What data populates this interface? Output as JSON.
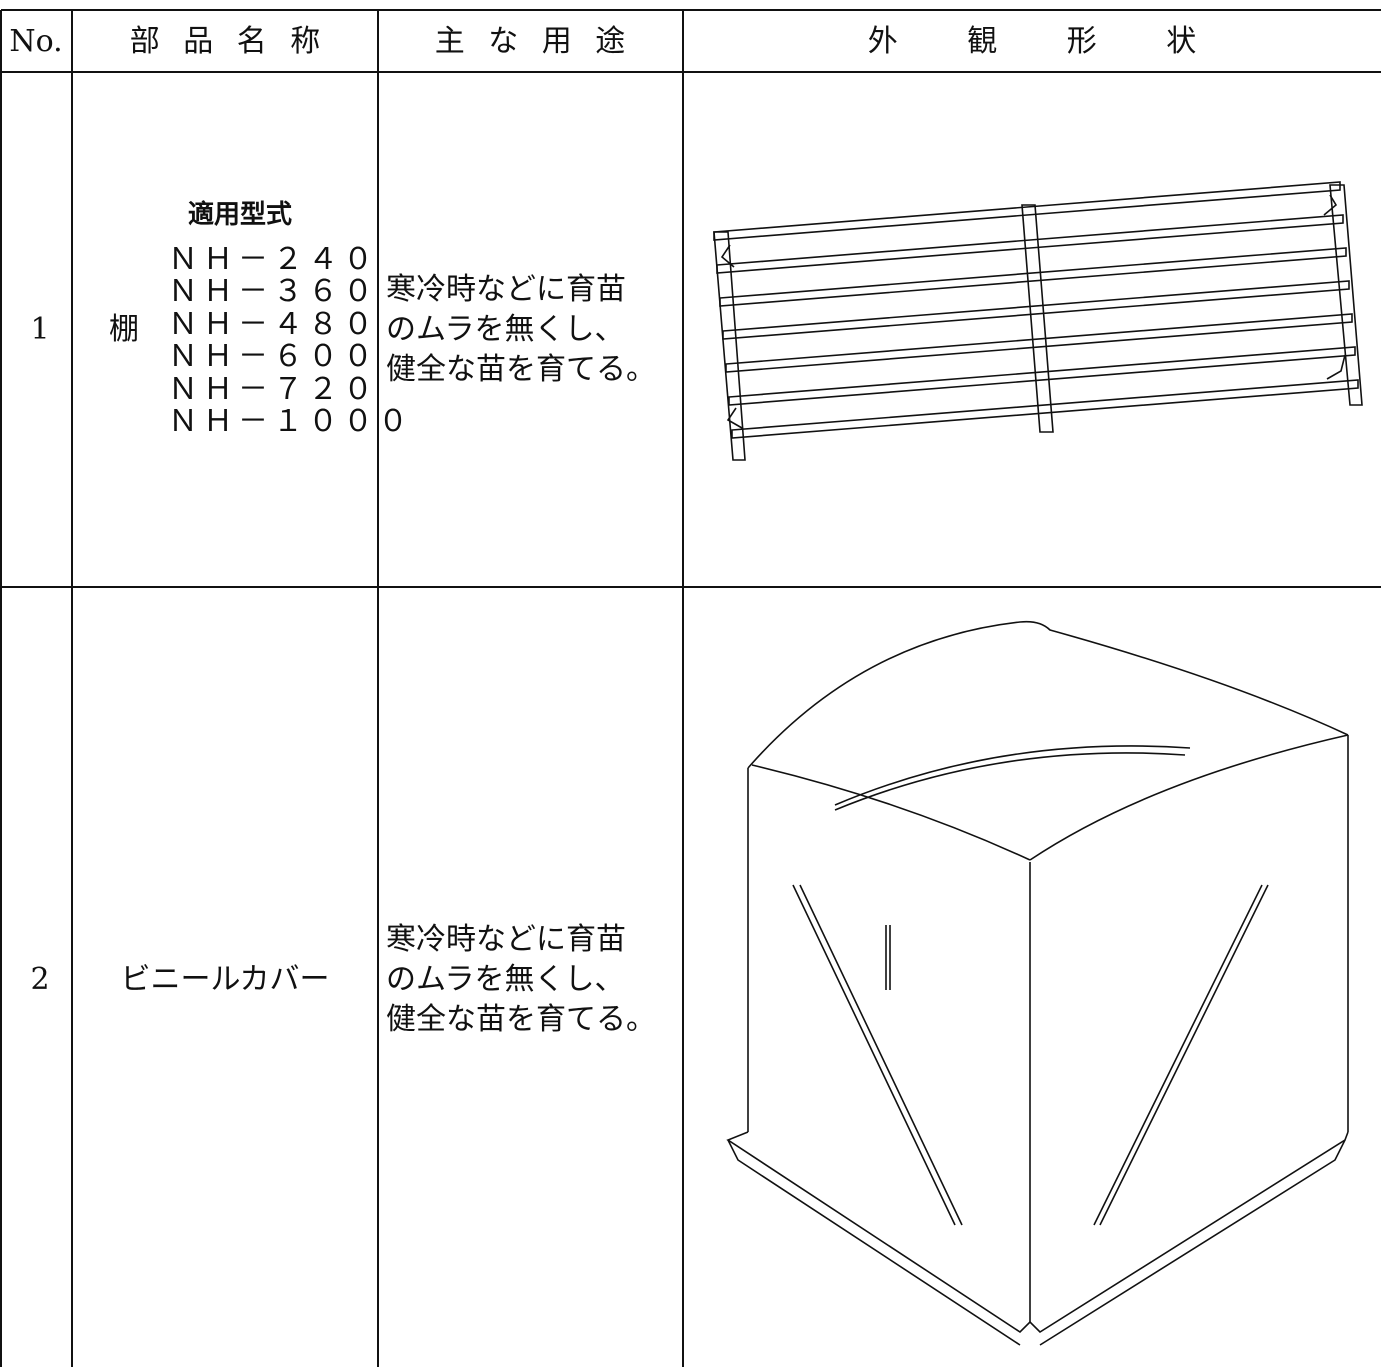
{
  "header": [
    "No.",
    "部 品 名 称",
    "主 な 用 途",
    "外 観 形 状"
  ],
  "rows": [
    {
      "no": "1",
      "name": "棚",
      "models_label": "適用型式",
      "models": [
        "ＮＨ－２４０",
        "ＮＨ－３６０",
        "ＮＨ－４８０",
        "ＮＨ－６００",
        "ＮＨ－７２０",
        "ＮＨ－１０００"
      ],
      "use": [
        "寒冷時などに育苗",
        "のムラを無くし、",
        "健全な苗を育てる。"
      ]
    },
    {
      "no": "2",
      "name": "ビニールカバー",
      "use": [
        "寒冷時などに育苗",
        "のムラを無くし、",
        "健全な苗を育てる。"
      ]
    }
  ]
}
